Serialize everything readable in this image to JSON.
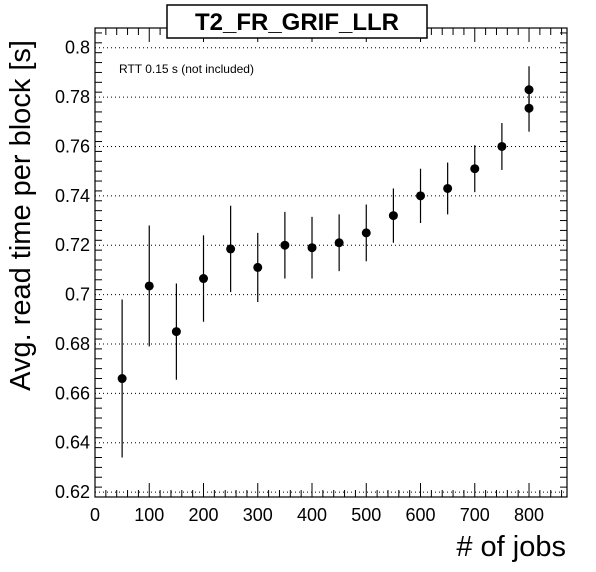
{
  "chart_data": {
    "type": "scatter",
    "title": "T2_FR_GRIF_LLR",
    "xlabel": "# of jobs",
    "ylabel": "Avg. read time per block [s]",
    "annotation": "RTT 0.15 s (not included)",
    "xlim": [
      0,
      870
    ],
    "ylim": [
      0.618,
      0.808
    ],
    "x_ticks": [
      0,
      100,
      200,
      300,
      400,
      500,
      600,
      700,
      800
    ],
    "x_tick_labels": [
      "0",
      "100",
      "200",
      "300",
      "400",
      "500",
      "600",
      "700",
      "800"
    ],
    "y_ticks": [
      0.62,
      0.64,
      0.66,
      0.68,
      0.7,
      0.72,
      0.74,
      0.76,
      0.78,
      0.8
    ],
    "y_tick_labels": [
      "0.62",
      "0.64",
      "0.66",
      "0.68",
      "0.7",
      "0.72",
      "0.74",
      "0.76",
      "0.78",
      "0.8"
    ],
    "grid_y": true,
    "grid_x": false,
    "points": [
      {
        "x": 50,
        "y": 0.666,
        "err": 0.032
      },
      {
        "x": 100,
        "y": 0.7035,
        "err": 0.0245
      },
      {
        "x": 150,
        "y": 0.685,
        "err": 0.0195
      },
      {
        "x": 200,
        "y": 0.7065,
        "err": 0.0175
      },
      {
        "x": 250,
        "y": 0.7185,
        "err": 0.0175
      },
      {
        "x": 300,
        "y": 0.711,
        "err": 0.014
      },
      {
        "x": 350,
        "y": 0.72,
        "err": 0.0135
      },
      {
        "x": 400,
        "y": 0.719,
        "err": 0.0125
      },
      {
        "x": 450,
        "y": 0.721,
        "err": 0.0115
      },
      {
        "x": 500,
        "y": 0.725,
        "err": 0.0115
      },
      {
        "x": 550,
        "y": 0.732,
        "err": 0.011
      },
      {
        "x": 600,
        "y": 0.74,
        "err": 0.011
      },
      {
        "x": 650,
        "y": 0.743,
        "err": 0.0105
      },
      {
        "x": 700,
        "y": 0.751,
        "err": 0.0095
      },
      {
        "x": 750,
        "y": 0.76,
        "err": 0.0095
      },
      {
        "x": 800,
        "y": 0.7755,
        "err": 0.0095
      },
      {
        "x": 800,
        "y": 0.783,
        "err": 0.0095
      }
    ]
  }
}
